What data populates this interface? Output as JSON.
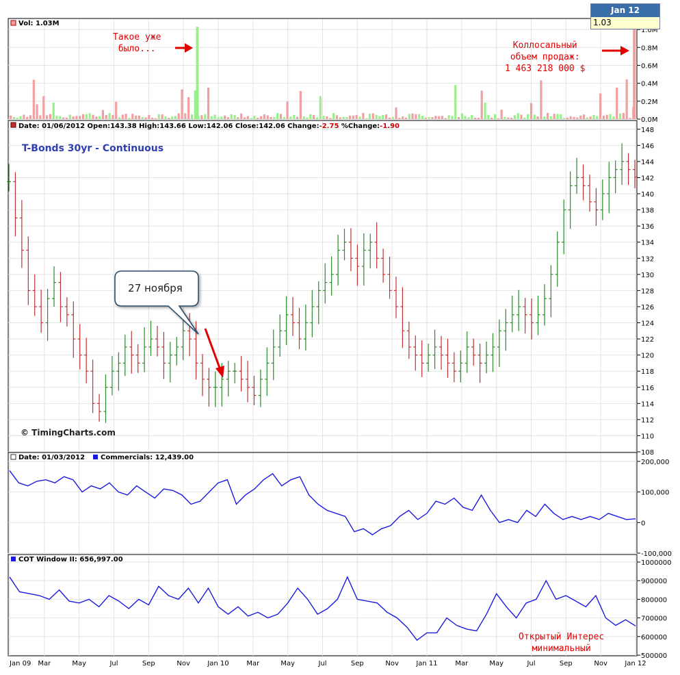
{
  "date_popup": {
    "header": "Jan 12",
    "value": "1.03"
  },
  "panels": {
    "volume": {
      "legend": "Vol: 1.03M"
    },
    "price": {
      "legend_parts": [
        {
          "text": "Date: 01/06/2012  Open:143.38  High:143.66  Low:142.06  Close:142.06  Change:",
          "color": "#000000"
        },
        {
          "text": "-2.75",
          "color": "#cc0000"
        },
        {
          "text": "  %Change:",
          "color": "#000000"
        },
        {
          "text": "-1.90",
          "color": "#cc0000"
        }
      ],
      "title": "T-Bonds 30yr - Continuous",
      "copyright": "© TimingCharts.com"
    },
    "commercials": {
      "legend_date": "Date: 01/03/2012",
      "legend_series": "Commercials: 12,439.00"
    },
    "cot": {
      "legend": "COT Window II: 656,997.00"
    }
  },
  "annotations": {
    "already_was": "Такое уже\nбыло...",
    "huge_volume": "Коллосальный\nобъем продаж:\n1 463 218 000 $",
    "callout": "27 ноября",
    "open_interest": "Открытый Интерес\nминимальный"
  },
  "colors": {
    "up": "#2a8a2a",
    "down": "#c03030",
    "vol_up": "#99f08a",
    "vol_down": "#f0a0a0",
    "line": "#1a1adf",
    "grid": "#e2e2e2",
    "arrow": "#e00000"
  },
  "chart_data": [
    {
      "type": "bar",
      "name": "volume",
      "unit": "M",
      "ylim": [
        0,
        1.1
      ],
      "yticks": [
        "0.0M",
        "0.2M",
        "0.4M",
        "0.6M",
        "0.8M",
        "1.0M"
      ],
      "spikes": [
        {
          "label": "Такое уже было",
          "date": "Dec 09",
          "value": 1.03,
          "direction": "up"
        },
        {
          "label": "Jan 12",
          "date": "Jan 12",
          "value": 1.03,
          "direction": "down"
        }
      ]
    },
    {
      "type": "ohlc",
      "name": "T-Bonds 30yr - Continuous",
      "ylim": [
        108,
        149
      ],
      "yticks": [
        108,
        110,
        112,
        114,
        116,
        118,
        120,
        122,
        124,
        126,
        128,
        130,
        132,
        134,
        136,
        138,
        140,
        142,
        144,
        146,
        148
      ],
      "xticks": [
        "Jan 09",
        "Mar",
        "May",
        "Jul",
        "Sep",
        "Nov",
        "Jan 10",
        "Mar",
        "May",
        "Jul",
        "Sep",
        "Nov",
        "Jan 11",
        "Mar",
        "May",
        "Jul",
        "Sep",
        "Nov",
        "Jan 12"
      ],
      "closes": [
        141.5,
        137,
        133,
        128,
        126,
        124,
        127,
        129,
        126,
        125,
        122,
        120,
        118,
        114,
        113,
        116,
        118,
        119,
        121,
        120,
        119,
        121,
        122,
        121,
        119,
        120,
        121,
        123,
        122,
        119,
        117,
        116,
        116,
        117,
        118,
        118,
        117,
        116,
        115,
        117,
        119,
        121,
        123,
        125,
        124,
        122,
        124,
        126,
        128,
        129,
        130,
        133,
        134,
        132,
        131,
        133,
        134,
        132,
        130,
        128,
        126,
        123,
        121,
        120,
        119,
        120,
        121,
        120,
        119,
        118,
        119,
        121,
        120,
        119,
        120,
        121,
        123,
        124,
        125,
        126,
        125,
        124,
        125,
        127,
        130,
        134,
        138,
        141,
        142,
        141,
        139,
        138,
        140,
        142,
        143,
        144,
        143,
        142.06
      ],
      "last": {
        "date": "01/06/2012",
        "open": 143.38,
        "high": 143.66,
        "low": 142.06,
        "close": 142.06,
        "change": -2.75,
        "pct_change": -1.9
      }
    },
    {
      "type": "line",
      "name": "Commercials",
      "ylim": [
        -100000,
        200000
      ],
      "yticks": [
        "-100,000",
        "0",
        "100,000",
        "200,000"
      ],
      "values": [
        170000,
        130000,
        120000,
        135000,
        140000,
        130000,
        150000,
        140000,
        100000,
        120000,
        110000,
        130000,
        100000,
        90000,
        120000,
        100000,
        80000,
        110000,
        105000,
        90000,
        60000,
        70000,
        100000,
        130000,
        140000,
        60000,
        90000,
        110000,
        140000,
        160000,
        120000,
        140000,
        150000,
        90000,
        60000,
        40000,
        30000,
        20000,
        -30000,
        -20000,
        -40000,
        -20000,
        -10000,
        20000,
        40000,
        10000,
        30000,
        70000,
        60000,
        80000,
        50000,
        40000,
        90000,
        40000,
        0,
        10000,
        0,
        40000,
        20000,
        60000,
        30000,
        10000,
        20000,
        10000,
        20000,
        10000,
        30000,
        20000,
        10000,
        12439
      ]
    },
    {
      "type": "line",
      "name": "COT Window II",
      "ylim": [
        500000,
        1000000
      ],
      "yticks": [
        "500000",
        "600000",
        "700000",
        "800000",
        "900000",
        "1000000"
      ],
      "values": [
        920000,
        840000,
        830000,
        820000,
        800000,
        850000,
        790000,
        780000,
        800000,
        760000,
        820000,
        790000,
        750000,
        800000,
        770000,
        870000,
        820000,
        800000,
        860000,
        780000,
        860000,
        760000,
        720000,
        760000,
        710000,
        730000,
        700000,
        720000,
        780000,
        860000,
        800000,
        720000,
        750000,
        800000,
        920000,
        800000,
        790000,
        780000,
        730000,
        700000,
        650000,
        580000,
        620000,
        620000,
        700000,
        660000,
        640000,
        630000,
        720000,
        830000,
        760000,
        700000,
        780000,
        800000,
        900000,
        800000,
        820000,
        790000,
        760000,
        820000,
        700000,
        660000,
        690000,
        656997
      ]
    }
  ]
}
